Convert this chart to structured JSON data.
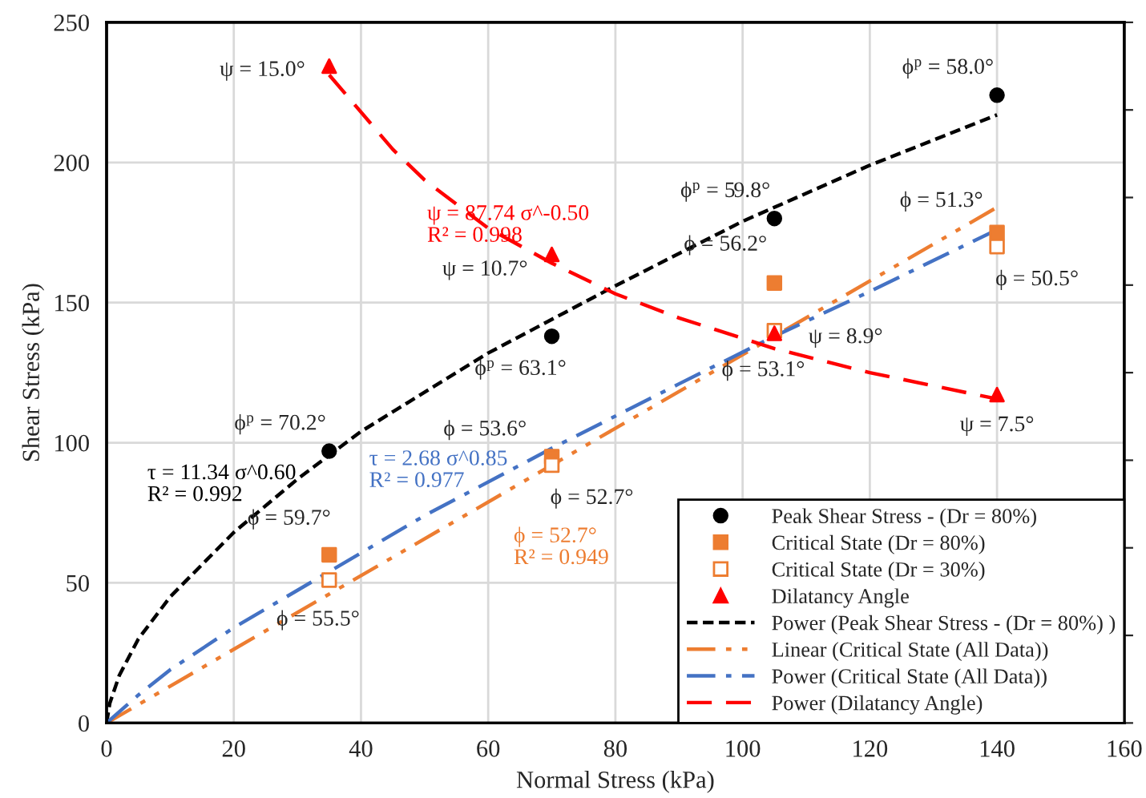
{
  "chart_data": {
    "type": "scatter",
    "xlabel": "Normal Stress (kPa)",
    "ylabel": "Shear Stress (kPa)",
    "xlim": [
      0,
      160
    ],
    "xticks": [
      0,
      20,
      40,
      60,
      80,
      100,
      120,
      140,
      160
    ],
    "ylim": [
      0,
      250
    ],
    "yticks": [
      0,
      50,
      100,
      150,
      200,
      250
    ],
    "y2lim": [
      0,
      16
    ],
    "x": [
      35,
      70,
      105,
      140
    ],
    "grid": true,
    "legend": "bottom right",
    "series": [
      {
        "name": "Peak Shear Stress - (Dr = 80%)",
        "marker": "circle",
        "color": "#000000",
        "values": [
          97,
          138,
          180,
          224
        ]
      },
      {
        "name": "Critical State (Dr = 80%)",
        "marker": "square",
        "color": "#ed7d31",
        "values": [
          60,
          95,
          157,
          175
        ]
      },
      {
        "name": "Critical State (Dr = 30%)",
        "marker": "square",
        "color": "#ed7d31",
        "values": [
          51,
          92,
          140,
          170
        ]
      },
      {
        "name": "Dilatancy Angle",
        "marker": "triangle",
        "color": "#ff0000",
        "axis": "y2",
        "values": [
          15.0,
          10.7,
          8.9,
          7.5
        ],
        "value_labels": [
          "ψ = 15.0°",
          "ψ = 10.7°",
          "ψ = 8.9°",
          "ψ = 7.5°"
        ]
      },
      {
        "name": "Power (Peak Shear Stress - (Dr = 80%) )",
        "type": "line",
        "line_style": "dashed",
        "marker": "none",
        "color": "#000000",
        "x": [
          0,
          0.5,
          2,
          5,
          10,
          20,
          30,
          40,
          60,
          80,
          100,
          120,
          140
        ],
        "values": [
          0,
          7,
          17,
          30,
          45,
          68,
          87,
          104,
          132,
          156,
          179,
          199,
          217
        ]
      },
      {
        "name": "Linear (Critical State (All Data))",
        "type": "line",
        "line_style": "dashdotdot",
        "marker": "none",
        "color": "#ed7d31",
        "x": [
          0,
          140
        ],
        "values": [
          0,
          184
        ]
      },
      {
        "name": "Power (Critical State (All Data))",
        "type": "line",
        "line_style": "dashdot",
        "marker": "none",
        "color": "#4472c4",
        "x": [
          0,
          5,
          10,
          20,
          35,
          50,
          70,
          90,
          105,
          120,
          140
        ],
        "values": [
          0,
          10,
          19,
          34,
          54,
          74,
          98,
          121,
          138,
          154,
          176
        ]
      },
      {
        "name": "Power (Dilatancy Angle)",
        "type": "line",
        "line_style": "longdash",
        "marker": "none",
        "color": "#ff0000",
        "axis": "y2",
        "x": [
          35,
          45,
          50,
          60,
          70,
          80,
          90,
          105,
          120,
          140
        ],
        "values": [
          14.8,
          13.1,
          12.4,
          11.3,
          10.5,
          9.8,
          9.25,
          8.55,
          8.0,
          7.4
        ]
      }
    ],
    "annotations": [
      "τ = 11.34 σ^0.60\nR² = 0.992",
      "τ = 2.68 σ^0.85\nR² = 0.977",
      "ϕ = 52.7°\nR² = 0.949",
      "ψ = 87.74 σ^-0.50\nR² = 0.998",
      {
        "text": "ϕ$^{p}$ = 70.2°",
        "x": 35,
        "y": 97
      },
      {
        "text": "ϕ$^{p}$ = 63.1°",
        "x": 70,
        "y": 138
      },
      {
        "text": "ϕ$^{p}$ = 59.8°",
        "x": 105,
        "y": 180
      },
      {
        "text": "ϕ$^{p}$ = 58.0°",
        "x": 140,
        "y": 224
      },
      {
        "text": "ϕ = 59.7°",
        "x": 35,
        "y": 60
      },
      {
        "text": "ϕ = 53.6°",
        "x": 70,
        "y": 95
      },
      {
        "text": "ϕ = 56.2°",
        "x": 105,
        "y": 157
      },
      {
        "text": "ϕ = 51.3°",
        "x": 140,
        "y": 175
      },
      {
        "text": "ϕ = 55.5°",
        "x": 35,
        "y": 51
      },
      {
        "text": "ϕ = 52.7°",
        "x": 70,
        "y": 92
      },
      {
        "text": "ϕ = 53.1°",
        "x": 105,
        "y": 140
      },
      {
        "text": "ϕ = 50.5°",
        "x": 140,
        "y": 170
      }
    ]
  }
}
